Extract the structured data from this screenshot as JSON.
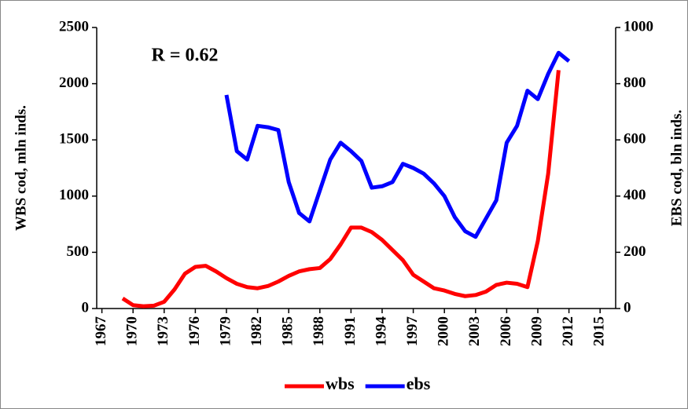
{
  "chart_data": {
    "type": "line",
    "annotation": "R = 0.62",
    "y_label": "WBS cod, mln inds.",
    "y2_label": "EBS cod, bln inds.",
    "x": [
      1969,
      1970,
      1971,
      1972,
      1973,
      1974,
      1975,
      1976,
      1977,
      1978,
      1979,
      1980,
      1981,
      1982,
      1983,
      1984,
      1985,
      1986,
      1987,
      1988,
      1989,
      1990,
      1991,
      1992,
      1993,
      1994,
      1995,
      1996,
      1997,
      1998,
      1999,
      2000,
      2001,
      2002,
      2003,
      2004,
      2005,
      2006,
      2007,
      2008,
      2009,
      2010,
      2011,
      2012
    ],
    "series": [
      {
        "name": "wbs",
        "color": "#ff0000",
        "axis": "y",
        "values": [
          90,
          30,
          20,
          25,
          60,
          170,
          310,
          370,
          380,
          330,
          270,
          220,
          190,
          180,
          200,
          240,
          290,
          330,
          350,
          360,
          440,
          570,
          720,
          720,
          680,
          610,
          520,
          430,
          300,
          240,
          180,
          160,
          130,
          110,
          120,
          150,
          210,
          230,
          220,
          190,
          600,
          1200,
          2120,
          null
        ]
      },
      {
        "name": "ebs",
        "color": "#0000ff",
        "axis": "y2",
        "values": [
          null,
          null,
          null,
          null,
          null,
          null,
          null,
          null,
          null,
          null,
          760,
          560,
          530,
          650,
          645,
          635,
          450,
          340,
          310,
          420,
          530,
          590,
          560,
          525,
          430,
          435,
          450,
          515,
          500,
          480,
          445,
          400,
          325,
          275,
          255,
          320,
          385,
          590,
          650,
          775,
          745,
          835,
          910,
          880
        ]
      }
    ],
    "xlim": [
      1966.5,
      2016.5
    ],
    "xticks": [
      1967,
      1970,
      1973,
      1976,
      1979,
      1982,
      1985,
      1988,
      1991,
      1994,
      1997,
      2000,
      2003,
      2006,
      2009,
      2012,
      2015
    ],
    "ylim": [
      0,
      2500
    ],
    "yticks": [
      0,
      500,
      1000,
      1500,
      2000,
      2500
    ],
    "y2lim": [
      0,
      1000
    ],
    "y2ticks": [
      0,
      200,
      400,
      600,
      800,
      1000
    ],
    "grid": false
  }
}
